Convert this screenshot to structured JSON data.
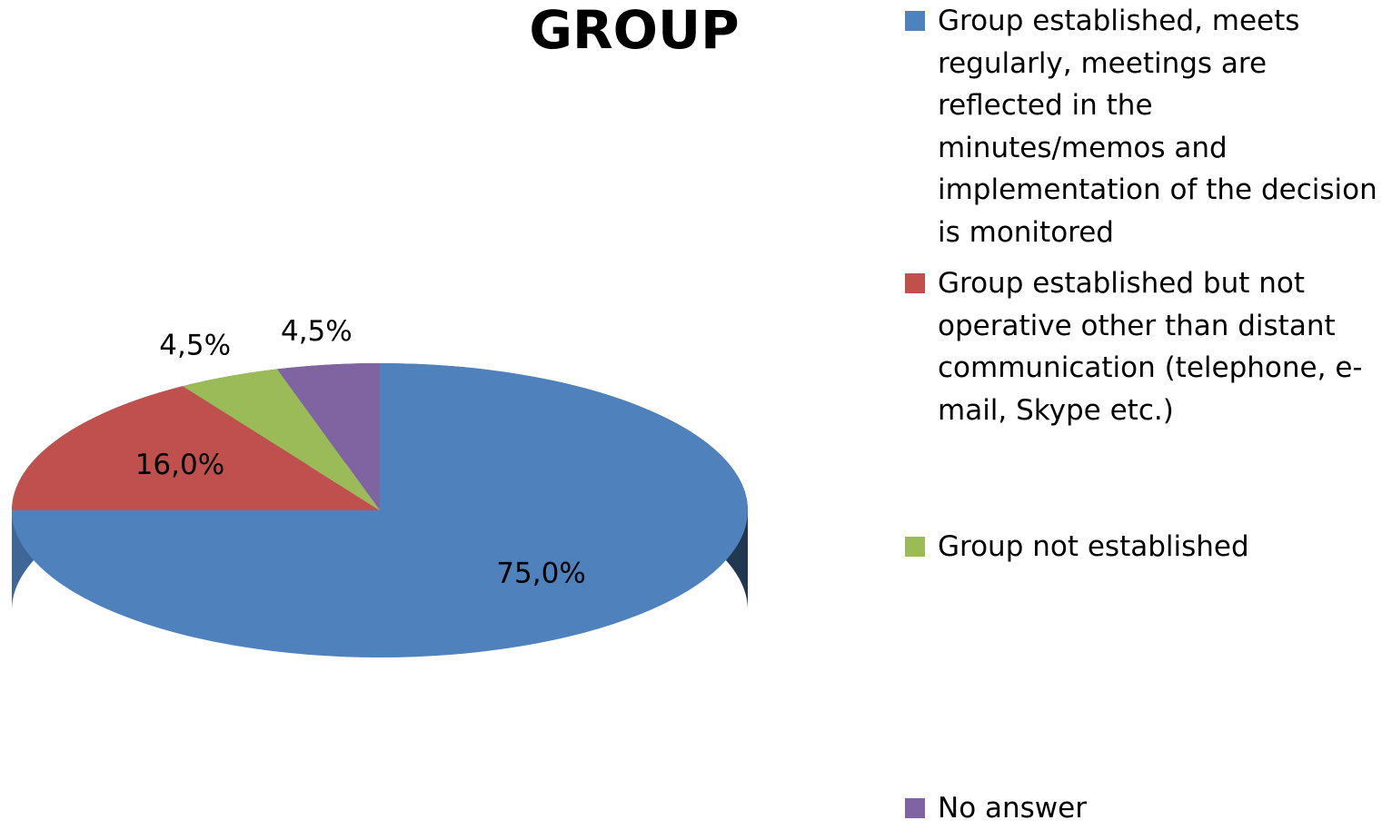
{
  "chart_data": {
    "type": "pie",
    "title": "GROUP",
    "categories": [
      "Group established, meets regularly, meetings are reflected in the minutes/memos and implementation of the decision is monitored",
      "Group established but not operative other than distant communication (telephone, e-mail, Skype etc.)",
      "Group not established",
      "No answer"
    ],
    "values": [
      75,
      16,
      4.5,
      4.5
    ],
    "value_labels": [
      "75,0%",
      "16,0%",
      "4,5%",
      "4,5%"
    ],
    "colors": [
      "#4f81bd",
      "#c0504d",
      "#9bbb59",
      "#8064a2"
    ]
  }
}
